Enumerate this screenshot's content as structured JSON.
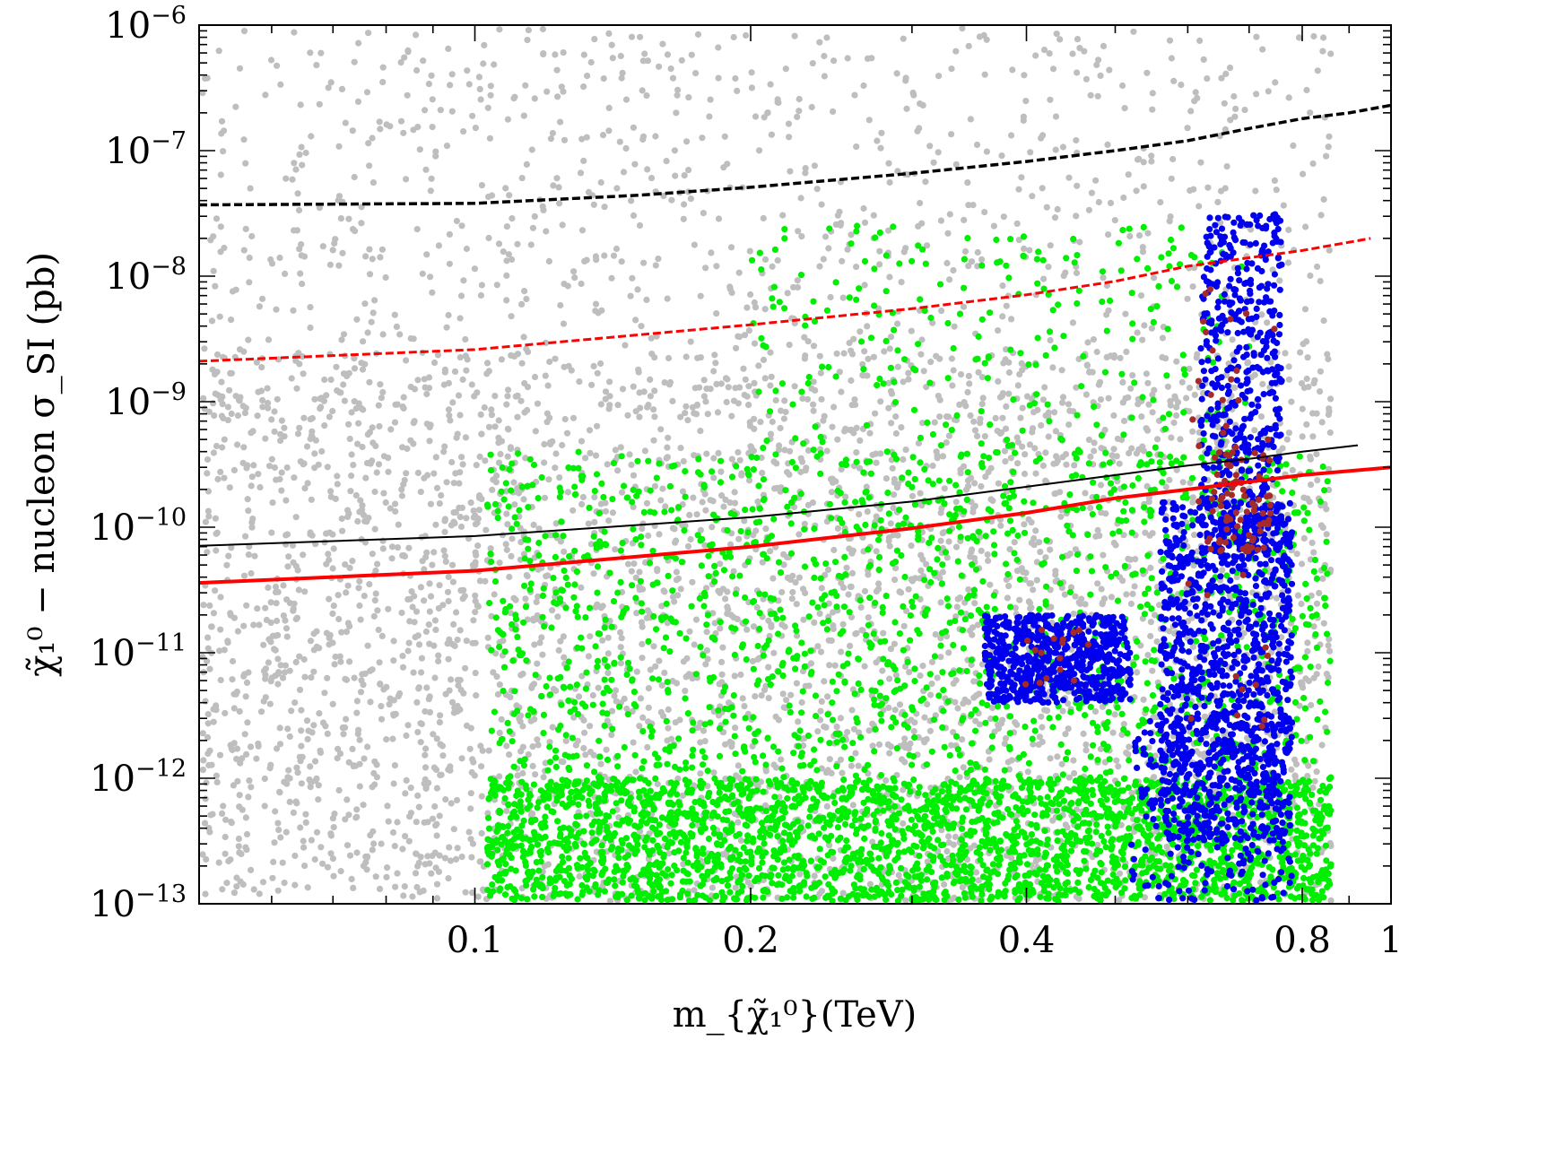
{
  "chart_data": {
    "type": "scatter",
    "xlabel": "m_{χ̃₁⁰}(TeV)",
    "ylabel": "χ̃₁⁰ − nucleon σ_SI (pb)",
    "x_scale": "log",
    "y_scale": "log",
    "xlim": [
      0.05,
      1.0
    ],
    "ylim": [
      1e-13,
      1e-06
    ],
    "x_ticks": [
      {
        "value": 0.1,
        "label": "0.1"
      },
      {
        "value": 0.2,
        "label": "0.2"
      },
      {
        "value": 0.4,
        "label": "0.4"
      },
      {
        "value": 0.8,
        "label": "0.8"
      },
      {
        "value": 1.0,
        "label": "1"
      }
    ],
    "y_ticks": [
      {
        "value": 1e-13,
        "base": "10",
        "exp": "−13"
      },
      {
        "value": 1e-12,
        "base": "10",
        "exp": "−12"
      },
      {
        "value": 1e-11,
        "base": "10",
        "exp": "−11"
      },
      {
        "value": 1e-10,
        "base": "10",
        "exp": "−10"
      },
      {
        "value": 1e-09,
        "base": "10",
        "exp": "−9"
      },
      {
        "value": 1e-08,
        "base": "10",
        "exp": "−8"
      },
      {
        "value": 1e-07,
        "base": "10",
        "exp": "−7"
      },
      {
        "value": 1e-06,
        "base": "10",
        "exp": "−6"
      }
    ],
    "grid": false,
    "legend": "none",
    "scatter_regions": [
      {
        "color": "#bebebe",
        "count": 2200,
        "x_range": [
          0.05,
          0.86
        ],
        "logy_range": [
          -13,
          -6
        ]
      },
      {
        "color": "#bebebe",
        "count": 2600,
        "x_range": [
          0.05,
          0.86
        ],
        "logy_range": [
          -13,
          -8.6
        ]
      },
      {
        "color": "#00ee00",
        "count": 2600,
        "x_range": [
          0.103,
          0.86
        ],
        "logy_range": [
          -13,
          -12
        ]
      },
      {
        "color": "#00ee00",
        "count": 1500,
        "x_range": [
          0.103,
          0.86
        ],
        "logy_range": [
          -12.2,
          -9.4
        ]
      },
      {
        "color": "#00ee00",
        "count": 250,
        "x_range": [
          0.2,
          0.7
        ],
        "logy_range": [
          -9.5,
          -7.6
        ]
      },
      {
        "color": "#0000ee",
        "count": 650,
        "x_range": [
          0.36,
          0.52
        ],
        "logy_range": [
          -11.4,
          -10.7
        ]
      },
      {
        "color": "#0000ee",
        "count": 1100,
        "x_range": [
          0.56,
          0.78
        ],
        "logy_range": [
          -12.5,
          -9.8
        ]
      },
      {
        "color": "#0000ee",
        "count": 500,
        "x_range": [
          0.62,
          0.76
        ],
        "logy_range": [
          -10.2,
          -7.5
        ]
      },
      {
        "color": "#0000ee",
        "count": 260,
        "x_range": [
          0.52,
          0.78
        ],
        "logy_range": [
          -13,
          -11.5
        ]
      },
      {
        "color": "#a52a2a",
        "count": 70,
        "x_range": [
          0.63,
          0.74
        ],
        "logy_range": [
          -10.2,
          -9.4
        ]
      },
      {
        "color": "#a52a2a",
        "count": 40,
        "x_range": [
          0.6,
          0.75
        ],
        "logy_range": [
          -11.6,
          -8.0
        ]
      },
      {
        "color": "#a52a2a",
        "count": 16,
        "x_range": [
          0.38,
          0.48
        ],
        "logy_range": [
          -11.3,
          -10.8
        ]
      }
    ],
    "curves": [
      {
        "color": "#000000",
        "style": "dashed",
        "width": 3.5,
        "points": [
          [
            0.05,
            3.7e-08
          ],
          [
            0.1,
            3.8e-08
          ],
          [
            0.15,
            4.4e-08
          ],
          [
            0.2,
            5.1e-08
          ],
          [
            0.3,
            6.6e-08
          ],
          [
            0.4,
            8.2e-08
          ],
          [
            0.5,
            1e-07
          ],
          [
            0.6,
            1.2e-07
          ],
          [
            0.7,
            1.5e-07
          ],
          [
            0.8,
            1.8e-07
          ],
          [
            0.9,
            2e-07
          ],
          [
            1.0,
            2.3e-07
          ]
        ]
      },
      {
        "color": "#ff0000",
        "style": "dashed",
        "width": 3.0,
        "points": [
          [
            0.05,
            2.1e-09
          ],
          [
            0.1,
            2.6e-09
          ],
          [
            0.2,
            4.1e-09
          ],
          [
            0.3,
            5.5e-09
          ],
          [
            0.4,
            7.1e-09
          ],
          [
            0.5,
            9.1e-09
          ],
          [
            0.6,
            1.2e-08
          ],
          [
            0.7,
            1.4e-08
          ],
          [
            0.8,
            1.6e-08
          ],
          [
            0.95,
            2e-08
          ]
        ]
      },
      {
        "color": "#000000",
        "style": "solid",
        "width": 2.0,
        "points": [
          [
            0.05,
            7.1e-11
          ],
          [
            0.1,
            8.5e-11
          ],
          [
            0.2,
            1.2e-10
          ],
          [
            0.3,
            1.6e-10
          ],
          [
            0.4,
            2.1e-10
          ],
          [
            0.5,
            2.6e-10
          ],
          [
            0.6,
            3.1e-10
          ],
          [
            0.7,
            3.5e-10
          ],
          [
            0.8,
            4e-10
          ],
          [
            0.92,
            4.5e-10
          ]
        ]
      },
      {
        "color": "#ff0000",
        "style": "solid",
        "width": 4.0,
        "points": [
          [
            0.05,
            3.6e-11
          ],
          [
            0.1,
            4.5e-11
          ],
          [
            0.2,
            7e-11
          ],
          [
            0.3,
            9.8e-11
          ],
          [
            0.4,
            1.3e-10
          ],
          [
            0.5,
            1.7e-10
          ],
          [
            0.6,
            2e-10
          ],
          [
            0.7,
            2.3e-10
          ],
          [
            0.8,
            2.6e-10
          ],
          [
            1.0,
            3e-10
          ]
        ]
      }
    ]
  }
}
